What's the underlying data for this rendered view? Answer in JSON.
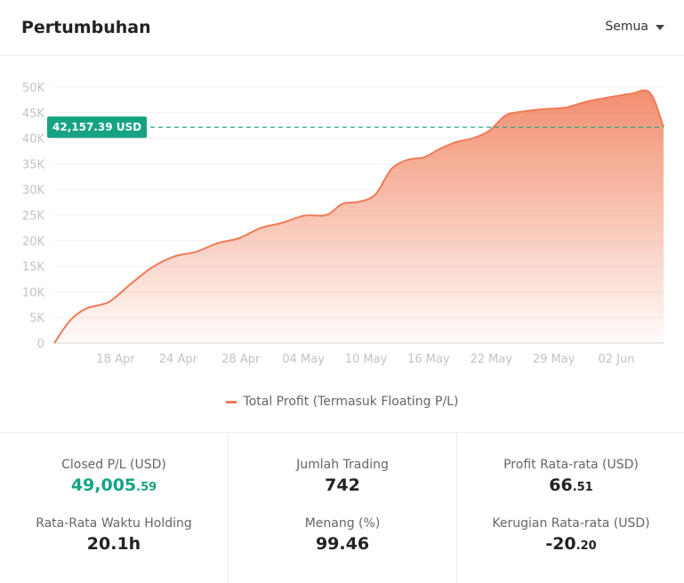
{
  "header": {
    "title": "Pertumbuhan",
    "filter_label": "Semua"
  },
  "chart_data": {
    "type": "area",
    "y_ticks": [
      "0",
      "5K",
      "10K",
      "15K",
      "20K",
      "25K",
      "30K",
      "35K",
      "40K",
      "45K",
      "50K"
    ],
    "ylim": [
      0,
      50000
    ],
    "x_ticks": [
      "18 Apr",
      "24 Apr",
      "28 Apr",
      "04 May",
      "10 May",
      "16 May",
      "22 May",
      "29 May",
      "02 Jun"
    ],
    "current_value_label": "42,157.39 USD",
    "current_value": 42157.39,
    "series": [
      {
        "name": "Total Profit (Termasuk Floating P/L)",
        "color": "#f07b55",
        "points": [
          [
            0,
            0
          ],
          [
            0.03,
            4500
          ],
          [
            0.06,
            6800
          ],
          [
            0.1,
            8000
          ],
          [
            0.14,
            11500
          ],
          [
            0.18,
            14800
          ],
          [
            0.22,
            16900
          ],
          [
            0.26,
            17800
          ],
          [
            0.3,
            19500
          ],
          [
            0.34,
            20500
          ],
          [
            0.38,
            22500
          ],
          [
            0.42,
            23500
          ],
          [
            0.46,
            24900
          ],
          [
            0.5,
            25000
          ],
          [
            0.53,
            27200
          ],
          [
            0.56,
            27600
          ],
          [
            0.59,
            29000
          ],
          [
            0.62,
            34000
          ],
          [
            0.65,
            35800
          ],
          [
            0.68,
            36300
          ],
          [
            0.71,
            38000
          ],
          [
            0.74,
            39300
          ],
          [
            0.77,
            40000
          ],
          [
            0.8,
            41500
          ],
          [
            0.83,
            44500
          ],
          [
            0.86,
            45200
          ],
          [
            0.9,
            45700
          ],
          [
            0.94,
            46000
          ],
          [
            0.98,
            47200
          ],
          [
            1.02,
            48000
          ],
          [
            1.06,
            48700
          ],
          [
            1.095,
            48900
          ],
          [
            1.12,
            42157
          ]
        ]
      }
    ],
    "legend_position": "bottom"
  },
  "legend": {
    "label": "Total Profit (Termasuk Floating P/L)"
  },
  "stats": {
    "closed_pl": {
      "label": "Closed P/L (USD)",
      "int": "49,005",
      "dec": ".59"
    },
    "jumlah_trading": {
      "label": "Jumlah Trading",
      "value": "742"
    },
    "profit_avg": {
      "label": "Profit Rata-rata (USD)",
      "int": "66",
      "dec": ".51"
    },
    "holding": {
      "label": "Rata-Rata Waktu Holding",
      "value": "20.1h"
    },
    "menang": {
      "label": "Menang (%)",
      "value": "99.46"
    },
    "loss_avg": {
      "label": "Kerugian Rata-rata (USD)",
      "int": "-20",
      "dec": ".20"
    }
  }
}
